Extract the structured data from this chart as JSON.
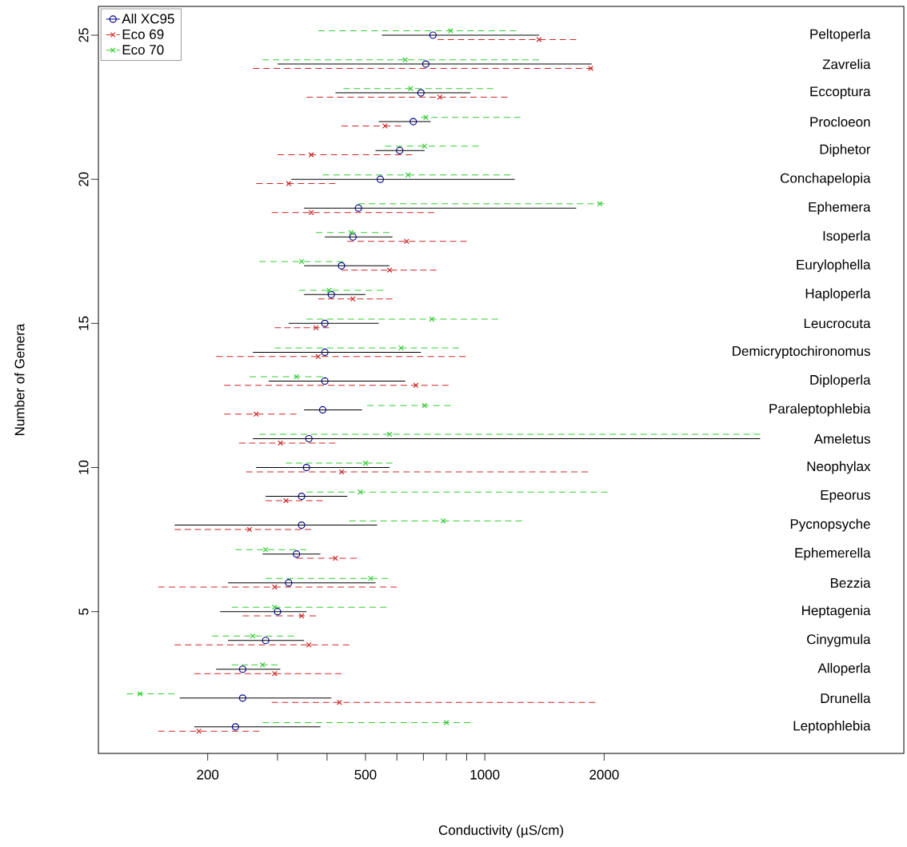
{
  "chart_data": {
    "type": "scatter",
    "xlabel": "Conductivity (µS/cm)",
    "ylabel": "Number of Genera",
    "log": "x",
    "xlim": [
      106,
      11400
    ],
    "ylim": [
      0.08,
      26.0
    ],
    "xticks": [
      200,
      {
        "value": 300,
        "label": null
      },
      {
        "value": 400,
        "label": null
      },
      500,
      {
        "value": 600,
        "label": null
      },
      {
        "value": 700,
        "label": null
      },
      {
        "value": 800,
        "label": null
      },
      {
        "value": 900,
        "label": null
      },
      1000,
      2000
    ],
    "yticks": [
      5,
      10,
      15,
      20,
      25
    ],
    "legend": "top left",
    "series": [
      {
        "name": "All XC95",
        "color": "#00008b",
        "marker": "circle",
        "line_style": "solid",
        "x": [
          740,
          710,
          690,
          660,
          610,
          545,
          480,
          465,
          435,
          410,
          395,
          395,
          395,
          390,
          360,
          355,
          345,
          345,
          335,
          320,
          300,
          280,
          245,
          245,
          235
        ],
        "values": [
          25,
          24,
          23,
          22,
          21,
          20,
          19,
          18,
          17,
          16,
          15,
          14,
          13,
          12,
          11,
          10,
          9,
          8,
          7,
          6,
          5,
          4,
          3,
          2,
          1
        ],
        "xerrors": [
          [
            550,
            1370
          ],
          [
            300,
            1860
          ],
          [
            420,
            920
          ],
          [
            540,
            730
          ],
          [
            530,
            705
          ],
          [
            325,
            1190
          ],
          [
            350,
            1700
          ],
          [
            395,
            585
          ],
          [
            350,
            575
          ],
          [
            350,
            500
          ],
          [
            320,
            540
          ],
          [
            260,
            690
          ],
          [
            285,
            630
          ],
          [
            350,
            490
          ],
          [
            260,
            4950
          ],
          [
            265,
            575
          ],
          [
            280,
            450
          ],
          [
            165,
            535
          ],
          [
            275,
            385
          ],
          [
            225,
            530
          ],
          [
            215,
            355
          ],
          [
            225,
            350
          ],
          [
            210,
            305
          ],
          [
            170,
            410
          ],
          [
            185,
            385
          ]
        ]
      },
      {
        "name": "Eco 69",
        "color": "#cd2626",
        "marker": "cross",
        "line_style": "dashed",
        "x": [
          1370,
          1850,
          770,
          560,
          365,
          320,
          365,
          635,
          575,
          465,
          375,
          380,
          670,
          265,
          305,
          435,
          315,
          255,
          420,
          295,
          345,
          360,
          295,
          430,
          190
        ],
        "values": [
          24.85,
          23.85,
          22.85,
          21.85,
          20.85,
          19.85,
          18.85,
          17.85,
          16.85,
          15.85,
          14.85,
          13.85,
          12.85,
          11.85,
          10.85,
          9.85,
          8.85,
          7.85,
          6.85,
          5.85,
          4.85,
          3.85,
          2.85,
          1.85,
          0.85
        ],
        "xerrors": [
          [
            760,
            1700
          ],
          [
            260,
            1870
          ],
          [
            355,
            1140
          ],
          [
            435,
            615
          ],
          [
            300,
            655
          ],
          [
            265,
            420
          ],
          [
            290,
            745
          ],
          [
            450,
            900
          ],
          [
            435,
            755
          ],
          [
            380,
            585
          ],
          [
            295,
            405
          ],
          [
            210,
            895
          ],
          [
            220,
            810
          ],
          [
            220,
            335
          ],
          [
            240,
            420
          ],
          [
            250,
            1820
          ],
          [
            280,
            390
          ],
          [
            165,
            365
          ],
          [
            335,
            475
          ],
          [
            150,
            600
          ],
          [
            245,
            375
          ],
          [
            165,
            455
          ],
          [
            185,
            435
          ],
          [
            290,
            1900
          ],
          [
            150,
            270
          ]
        ]
      },
      {
        "name": "Eco 70",
        "color": "#32cd32",
        "marker": "cross",
        "line_style": "dashed",
        "x": [
          820,
          630,
          650,
          710,
          705,
          640,
          1950,
          460,
          345,
          405,
          735,
          615,
          335,
          705,
          575,
          500,
          485,
          785,
          280,
          515,
          295,
          260,
          275,
          135,
          800
        ],
        "values": [
          25.15,
          24.15,
          23.15,
          22.15,
          21.15,
          20.15,
          19.15,
          18.15,
          17.15,
          16.15,
          15.15,
          14.15,
          13.15,
          12.15,
          11.15,
          10.15,
          9.15,
          8.15,
          7.15,
          6.15,
          5.15,
          4.15,
          3.15,
          2.15,
          1.15
        ],
        "xerrors": [
          [
            380,
            1200
          ],
          [
            275,
            1370
          ],
          [
            440,
            1050
          ],
          [
            690,
            1230
          ],
          [
            560,
            965
          ],
          [
            390,
            1160
          ],
          [
            480,
            2000
          ],
          [
            375,
            575
          ],
          [
            270,
            440
          ],
          [
            340,
            555
          ],
          [
            355,
            1080
          ],
          [
            295,
            860
          ],
          [
            255,
            390
          ],
          [
            505,
            820
          ],
          [
            270,
            4950
          ],
          [
            315,
            585
          ],
          [
            355,
            2040
          ],
          [
            455,
            1240
          ],
          [
            235,
            355
          ],
          [
            280,
            570
          ],
          [
            230,
            565
          ],
          [
            205,
            330
          ],
          [
            230,
            300
          ],
          [
            125,
            165
          ],
          [
            275,
            920
          ]
        ]
      }
    ],
    "annotations": [
      "Peltoperla",
      "Zavrelia",
      "Eccoptura",
      "Procloeon",
      "Diphetor",
      "Conchapelopia",
      "Ephemera",
      "Isoperla",
      "Eurylophella",
      "Haploperla",
      "Leucrocuta",
      "Demicryptochironomus",
      "Diploperla",
      "Paraleptophlebia",
      "Ameletus",
      "Neophylax",
      "Epeorus",
      "Pycnopsyche",
      "Ephemerella",
      "Bezzia",
      "Heptagenia",
      "Cinygmula",
      "Alloperla",
      "Drunella",
      "Leptophlebia"
    ]
  }
}
